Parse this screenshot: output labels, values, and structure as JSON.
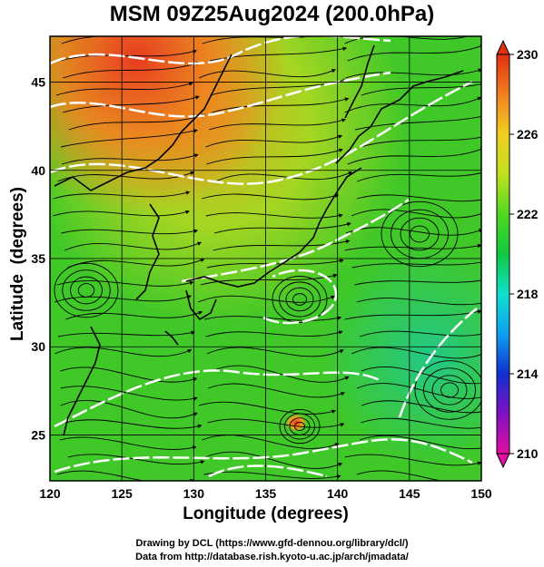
{
  "title": "MSM 09Z25Aug2024 (200.0hPa)",
  "axes": {
    "xlabel": "Longitude (degrees)",
    "ylabel": "Latitude  (degrees)",
    "xticks": [
      "120",
      "125",
      "130",
      "135",
      "140",
      "145",
      "150"
    ],
    "yticks": [
      "25",
      "30",
      "35",
      "40",
      "45"
    ],
    "xrange": [
      120,
      150
    ],
    "yrange": [
      22.4,
      47.6
    ]
  },
  "colorbar": {
    "labels": [
      "230",
      "226",
      "222",
      "218",
      "214",
      "210"
    ],
    "range": [
      210,
      230
    ],
    "colors": [
      "#e010a0",
      "#8010c0",
      "#1030d0",
      "#10a0f0",
      "#10e0d0",
      "#10c840",
      "#50d820",
      "#c0e020",
      "#f0d020",
      "#f08020",
      "#e03010"
    ]
  },
  "footer": {
    "line1": "Drawing by DCL (https://www.gfd-dennou.org/library/dcl/)",
    "line2": "Data from http://database.rish.kyoto-u.ac.jp/arch/jmadata/"
  },
  "map": {
    "field_colors": {
      "base": "#40c828",
      "warm": "#d0dc20",
      "hot": "#e84820",
      "cool": "#28c870",
      "coast": "#000000",
      "contour": "#ffffff",
      "stream": "#000000"
    }
  }
}
